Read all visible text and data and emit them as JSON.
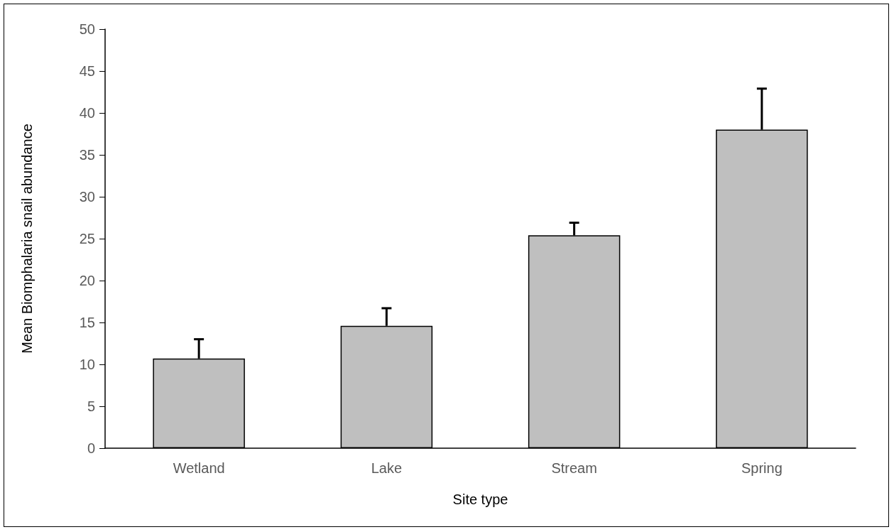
{
  "chart_data": {
    "type": "bar",
    "xlabel": "Site type",
    "ylabel": "Mean Biomphalaria snail abundance",
    "categories": [
      "Wetland",
      "Lake",
      "Stream",
      "Spring"
    ],
    "values": [
      10.7,
      14.6,
      25.4,
      38.0
    ],
    "errors": [
      [
        10.7,
        13.0
      ],
      [
        14.6,
        16.7
      ],
      [
        25.4,
        26.9
      ],
      [
        38.0,
        42.9
      ]
    ],
    "color": "#bfbfbf",
    "ylim": [
      0,
      50
    ],
    "yticks": [
      0,
      5,
      10,
      15,
      20,
      25,
      30,
      35,
      40,
      45,
      50
    ],
    "grid": false
  }
}
